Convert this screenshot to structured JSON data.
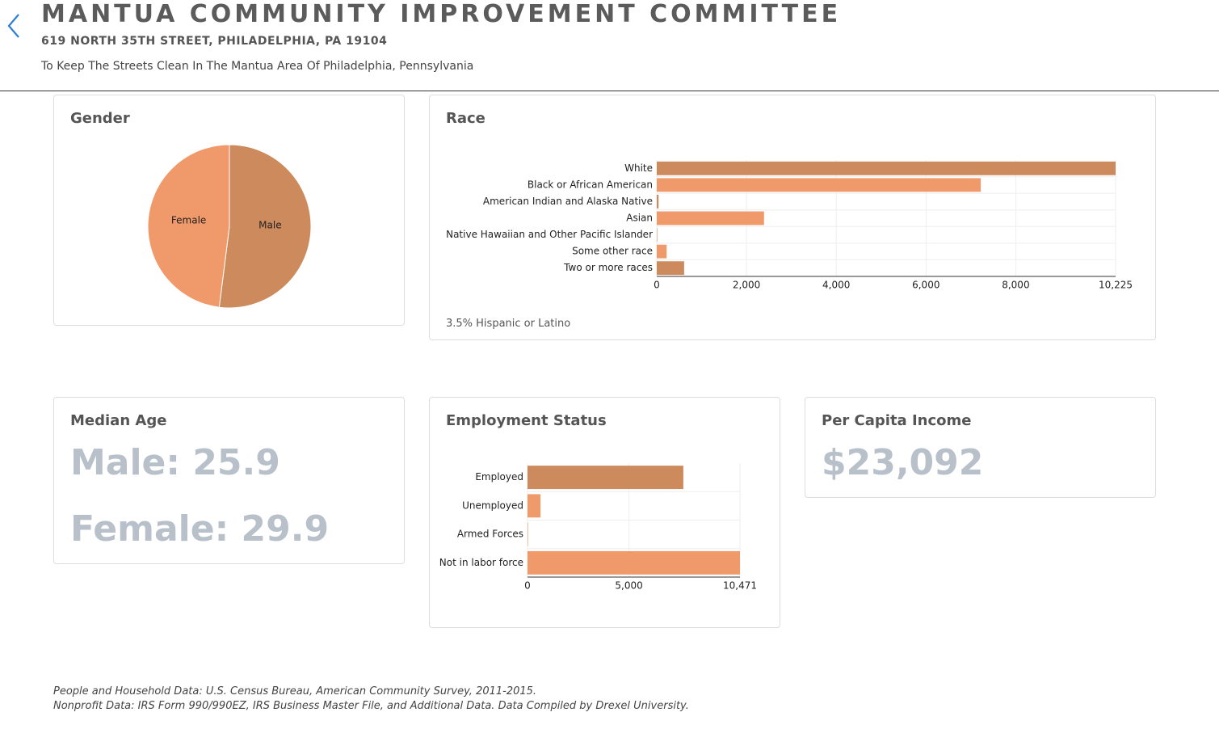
{
  "header": {
    "title": "MANTUA COMMUNITY IMPROVEMENT COMMITTEE",
    "address": "619 NORTH 35TH STREET, PHILADELPHIA, PA 19104",
    "mission": "To Keep The Streets Clean In The Mantua Area Of Philadelphia, Pennsylvania"
  },
  "chart_data": [
    {
      "type": "pie",
      "title": "Gender",
      "categories": [
        "Male",
        "Female"
      ],
      "values": [
        52,
        48
      ],
      "colors": [
        "#cd8a5d",
        "#f0996a"
      ]
    },
    {
      "type": "bar",
      "orientation": "horizontal",
      "title": "Race",
      "note": "3.5% Hispanic or Latino",
      "categories": [
        "White",
        "Black or African American",
        "American Indian and Alaska Native",
        "Asian",
        "Native Hawaiian and Other Pacific Islander",
        "Some other race",
        "Two or more races"
      ],
      "values": [
        10225,
        7220,
        40,
        2390,
        10,
        220,
        610
      ],
      "colors": [
        "#cd8a5d",
        "#f0996a",
        "#cd8a5d",
        "#f0996a",
        "#cd8a5d",
        "#f0996a",
        "#cd8a5d"
      ],
      "xlim": [
        0,
        10225
      ],
      "xticks": [
        0,
        {
          "value": 2000,
          "label": "2,000"
        },
        {
          "value": 4000,
          "label": "4,000"
        },
        {
          "value": 6000,
          "label": "6,000"
        },
        {
          "value": 8000,
          "label": "8,000"
        },
        {
          "value": 10225,
          "label": "10,225"
        }
      ],
      "grid": true
    },
    {
      "type": "bar",
      "orientation": "horizontal",
      "title": "Employment Status",
      "categories": [
        "Employed",
        "Unemployed",
        "Armed Forces",
        "Not in labor force"
      ],
      "values": [
        7680,
        640,
        20,
        10471
      ],
      "colors": [
        "#cd8a5d",
        "#f0996a",
        "#cd8a5d",
        "#f0996a"
      ],
      "xlim": [
        0,
        10471
      ],
      "xticks": [
        0,
        {
          "value": 5000,
          "label": "5,000"
        },
        {
          "value": 10471,
          "label": "10,471"
        }
      ],
      "grid": true
    }
  ],
  "median_age": {
    "title": "Median Age",
    "male": "Male: 25.9",
    "female": "Female: 29.9"
  },
  "per_capita_income": {
    "title": "Per Capita Income",
    "value": "$23,092"
  },
  "footer": [
    "People and Household Data: U.S. Census Bureau, American Community Survey, 2011-2015.",
    "Nonprofit Data: IRS Form 990/990EZ, IRS Business Master File, and Additional Data. Data Compiled by Drexel University."
  ]
}
